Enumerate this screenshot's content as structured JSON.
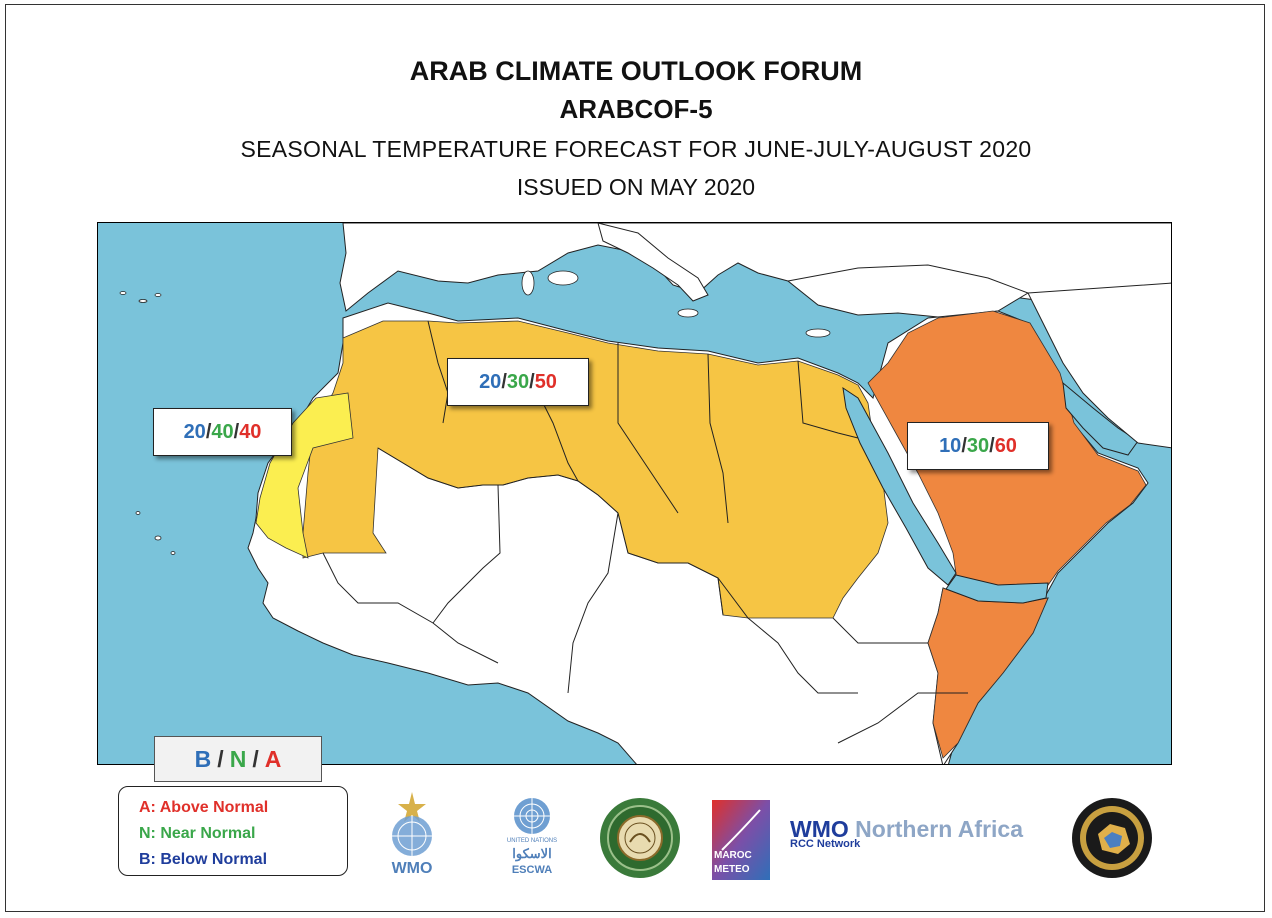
{
  "title": {
    "line1": "ARAB CLIMATE OUTLOOK FORUM",
    "line2": "ARABCOF-5",
    "line3": "SEASONAL TEMPERATURE FORECAST FOR JUNE-JULY-AUGUST 2020",
    "line4": "ISSUED ON MAY 2020"
  },
  "colors": {
    "sea": "#7ac3da",
    "land": "#ffffff",
    "zone_40": "#fbee50",
    "zone_50": "#f6c544",
    "zone_60": "#ef8740",
    "below": "#2f6fb8",
    "near": "#3aa74a",
    "above": "#e0302a"
  },
  "zones": [
    {
      "id": "west-coast",
      "below": "20",
      "near": "40",
      "above": "40"
    },
    {
      "id": "north-africa",
      "below": "20",
      "near": "30",
      "above": "50"
    },
    {
      "id": "arabian-peninsula",
      "below": "10",
      "near": "30",
      "above": "60"
    }
  ],
  "legend": {
    "b": "B",
    "n": "N",
    "a": "A",
    "sep": "/",
    "above": "A: Above Normal",
    "near": "N: Near Normal",
    "below": "B: Below Normal"
  },
  "logos": {
    "wmo_label": "WMO",
    "un_label": "UNITED NATIONS",
    "escwa_ar": "الاسكوا",
    "escwa_label": "ESCWA",
    "maroc_1": "MAROC",
    "maroc_2": "METEO",
    "rcc_title_1": "WMO",
    "rcc_title_2": "Northern Africa",
    "rcc_sub": "RCC Network"
  }
}
